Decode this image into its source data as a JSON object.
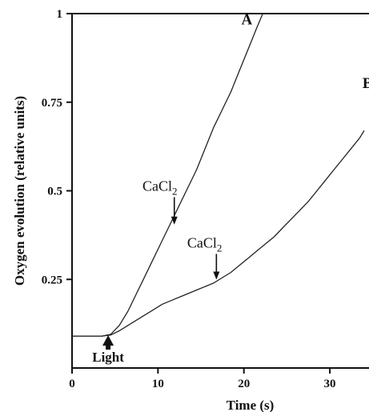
{
  "chart_data": {
    "type": "line",
    "xlabel": "Time (s)",
    "ylabel": "Oxygen evolution (relative units)",
    "xlim": [
      0,
      34
    ],
    "ylim": [
      0,
      1
    ],
    "x_ticks": [
      0,
      10,
      20,
      30
    ],
    "y_ticks": [
      0.25,
      0.5,
      0.75,
      1
    ],
    "x_tick_labels": [
      "0",
      "10",
      "20",
      "30"
    ],
    "y_tick_labels": [
      "0.25",
      "0.5",
      "0.75",
      "1"
    ],
    "series": [
      {
        "name": "A",
        "x": [
          0,
          3.5,
          4.5,
          5.5,
          6.5,
          7.5,
          8.5,
          9.5,
          10.5,
          11.5,
          12.5,
          13.5,
          14.5,
          15.5,
          16.5,
          17.5,
          18.5,
          19.5,
          20.5,
          21.5,
          22.2
        ],
        "y": [
          0.09,
          0.09,
          0.095,
          0.12,
          0.16,
          0.21,
          0.26,
          0.31,
          0.36,
          0.41,
          0.46,
          0.51,
          0.56,
          0.62,
          0.68,
          0.73,
          0.78,
          0.84,
          0.9,
          0.96,
          1.0
        ]
      },
      {
        "name": "B",
        "x": [
          0,
          3.5,
          4.5,
          5.5,
          6.5,
          7.5,
          8.5,
          9.5,
          10.5,
          11.5,
          12.5,
          13.5,
          14.5,
          15.5,
          16.5,
          17.5,
          18.5,
          19.5,
          20.5,
          21.5,
          22.5,
          23.5,
          24.5,
          25.5,
          26.5,
          27.5,
          28.5,
          29.5,
          30.5,
          31.5,
          32.5,
          33.5,
          34
        ],
        "y": [
          0.09,
          0.09,
          0.093,
          0.105,
          0.12,
          0.135,
          0.15,
          0.165,
          0.18,
          0.19,
          0.2,
          0.21,
          0.22,
          0.23,
          0.24,
          0.255,
          0.27,
          0.29,
          0.31,
          0.33,
          0.35,
          0.37,
          0.395,
          0.42,
          0.445,
          0.47,
          0.5,
          0.53,
          0.56,
          0.59,
          0.62,
          0.65,
          0.67
        ]
      }
    ],
    "series_labels": [
      {
        "text": "A",
        "x": 19.7,
        "y": 0.97
      },
      {
        "text": "B",
        "x": 33.8,
        "y": 0.79
      }
    ],
    "annotations": [
      {
        "text": "CaCl",
        "sub": "2",
        "x": 11.9,
        "y": 0.4,
        "label_x": 8.2,
        "label_y": 0.5
      },
      {
        "text": "CaCl",
        "sub": "2",
        "x": 16.8,
        "y": 0.245,
        "label_x": 13.4,
        "label_y": 0.34
      }
    ],
    "light_marker": {
      "text": "Light",
      "x": 4.2
    },
    "grid": false
  }
}
